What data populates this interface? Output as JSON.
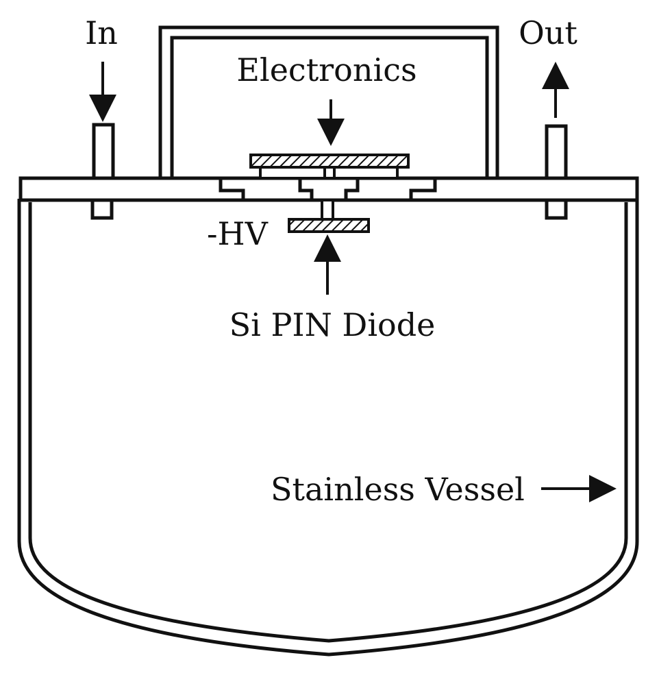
{
  "labels": {
    "inlet": "In",
    "outlet": "Out",
    "electronics": "Electronics",
    "high_voltage": "-HV",
    "diode": "Si PIN Diode",
    "vessel": "Stainless Vessel"
  },
  "colors": {
    "line": "#111111",
    "background": "#ffffff"
  }
}
